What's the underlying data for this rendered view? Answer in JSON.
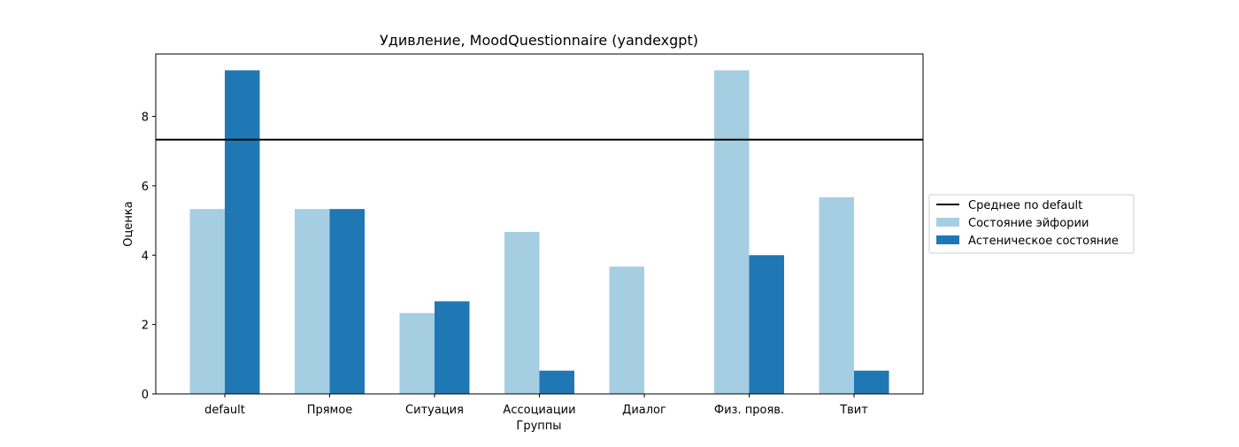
{
  "chart_data": {
    "type": "bar",
    "title": "Удивление, MoodQuestionnaire (yandexgpt)",
    "xlabel": "Группы",
    "ylabel": "Оценка",
    "ylim": [
      0,
      9.8
    ],
    "yticks": [
      "0",
      "2",
      "4",
      "6",
      "8"
    ],
    "categories": [
      "default",
      "Прямое",
      "Ситуация",
      "Ассоциации",
      "Диалог",
      "Физ. прояв.",
      "Твит"
    ],
    "series": [
      {
        "name": "Состояние эйфории",
        "color": "#a6cee3",
        "values": [
          5.33,
          5.33,
          2.33,
          4.67,
          3.67,
          9.33,
          5.67
        ]
      },
      {
        "name": "Астеническое состояние",
        "color": "#1f78b4",
        "values": [
          9.33,
          5.33,
          2.67,
          0.67,
          0.0,
          4.0,
          0.67
        ]
      }
    ],
    "reference_line": {
      "name": "Среднее по default",
      "value": 7.33,
      "color": "#000000"
    },
    "legend": "center-right-outside",
    "grid": false
  }
}
